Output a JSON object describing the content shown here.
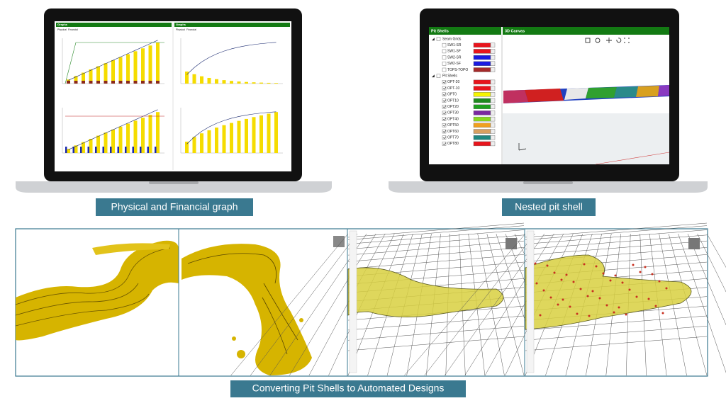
{
  "left_screen": {
    "title": "Graphs",
    "tabs": [
      "Physical",
      "Financial"
    ]
  },
  "right_screen": {
    "left_panel_title": "Pit Shells",
    "canvas_title": "3D Canvas",
    "groups": [
      {
        "name": "Seam Grids",
        "items": [
          {
            "name": "SW1-SR",
            "color": "#e8141c"
          },
          {
            "name": "SW1-SF",
            "color": "#e8141c"
          },
          {
            "name": "SW2-SR",
            "color": "#1a1ae0"
          },
          {
            "name": "SW2-SF",
            "color": "#1a1ae0"
          },
          {
            "name": "TOPS-TOPO",
            "color": "#a52a2a"
          }
        ]
      },
      {
        "name": "Pit Shells",
        "items": [
          {
            "name": "OPT-20",
            "color": "#e8141c"
          },
          {
            "name": "OPT-10",
            "color": "#e8141c"
          },
          {
            "name": "OPT0",
            "color": "#f5f500"
          },
          {
            "name": "OPT10",
            "color": "#1f8a1f"
          },
          {
            "name": "OPT20",
            "color": "#1fa01f"
          },
          {
            "name": "OPT30",
            "color": "#7a2aa0"
          },
          {
            "name": "OPT40",
            "color": "#88d820"
          },
          {
            "name": "OPT50",
            "color": "#f0a020"
          },
          {
            "name": "OPT60",
            "color": "#d8a060"
          },
          {
            "name": "OPT70",
            "color": "#208880"
          },
          {
            "name": "OPT80",
            "color": "#e8141c"
          }
        ]
      }
    ]
  },
  "captions": [
    "Physical and Financial graph",
    "Nested pit shell",
    "Converting Pit Shells to Automated Designs"
  ]
}
